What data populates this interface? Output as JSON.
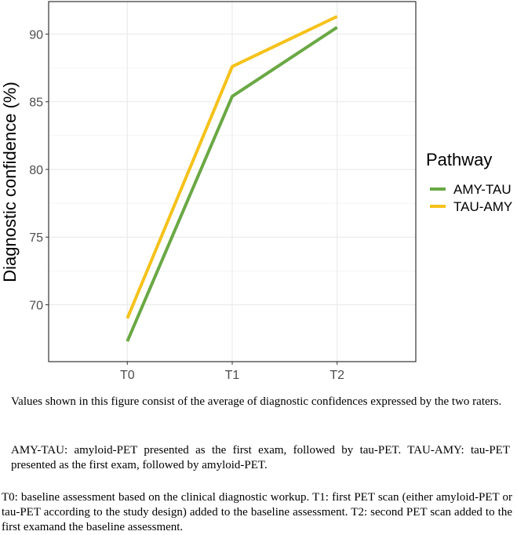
{
  "chart_data": {
    "type": "line",
    "categories": [
      "T0",
      "T1",
      "T2"
    ],
    "series": [
      {
        "name": "AMY-TAU",
        "color": "#6aa844",
        "values": [
          67.3,
          85.4,
          90.5
        ]
      },
      {
        "name": "TAU-AMY",
        "color": "#f5c21b",
        "values": [
          69.0,
          87.6,
          91.3
        ]
      }
    ],
    "ylabel": "Diagnostic confidence (%)",
    "xlabel": "",
    "ylim": [
      65.8,
      92.4
    ],
    "yticks": [
      "70",
      "75",
      "80",
      "85",
      "90"
    ],
    "grid": true,
    "legend": {
      "title": "Pathway",
      "position": "right"
    }
  },
  "captions": {
    "p1": "Values shown in this figure consist of the average of diagnostic confidences expressed by the two raters.",
    "p2": "AMY-TAU: amyloid-PET presented as the first exam, followed by tau-PET. TAU-AMY: tau-PET presented as the first exam, followed by amyloid-PET.",
    "p3": "T0: baseline assessment based on the clinical diagnostic workup. T1: first PET scan (either amyloid-PET or tau-PET according to the study design) added to the baseline assessment. T2: second PET scan added to the first examand the baseline assessment."
  }
}
